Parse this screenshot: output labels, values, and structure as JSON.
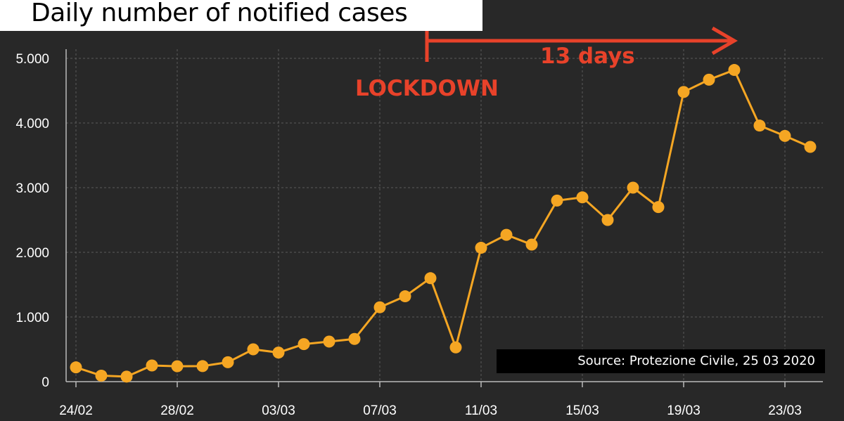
{
  "chart_data": {
    "type": "line",
    "title": "Daily number of notified cases",
    "x": [
      "24/02",
      "25/02",
      "26/02",
      "27/02",
      "28/02",
      "29/02",
      "01/03",
      "02/03",
      "03/03",
      "04/03",
      "05/03",
      "06/03",
      "07/03",
      "08/03",
      "09/03",
      "10/03",
      "11/03",
      "12/03",
      "13/03",
      "14/03",
      "15/03",
      "16/03",
      "17/03",
      "18/03",
      "19/03",
      "20/03",
      "21/03",
      "22/03",
      "23/03",
      "24/03"
    ],
    "x_tick_labels": [
      "24/02",
      "28/02",
      "03/03",
      "07/03",
      "11/03",
      "15/03",
      "19/03",
      "23/03"
    ],
    "x_tick_indices": [
      0,
      4,
      8,
      12,
      16,
      20,
      24,
      28
    ],
    "y_tick_labels": [
      "0",
      "1.000",
      "2.000",
      "3.000",
      "4.000",
      "5.000"
    ],
    "y_ticks": [
      0,
      1000,
      2000,
      3000,
      4000,
      5000
    ],
    "ylim": [
      0,
      5000
    ],
    "series": [
      {
        "values": [
          221,
          93,
          78,
          250,
          238,
          240,
          300,
          500,
          450,
          580,
          620,
          660,
          1150,
          1320,
          1600,
          530,
          2070,
          2270,
          2120,
          2800,
          2850,
          2500,
          3000,
          2700,
          4480,
          4670,
          4820,
          3960,
          3800,
          3630
        ],
        "color": "#f5a623"
      }
    ],
    "grid": true,
    "annotations": {
      "lockdown_label": "LOCKDOWN",
      "arrow_label": "13 days",
      "color": "#e8422a"
    },
    "source": "Source: Protezione Civile, 25 03 2020"
  }
}
